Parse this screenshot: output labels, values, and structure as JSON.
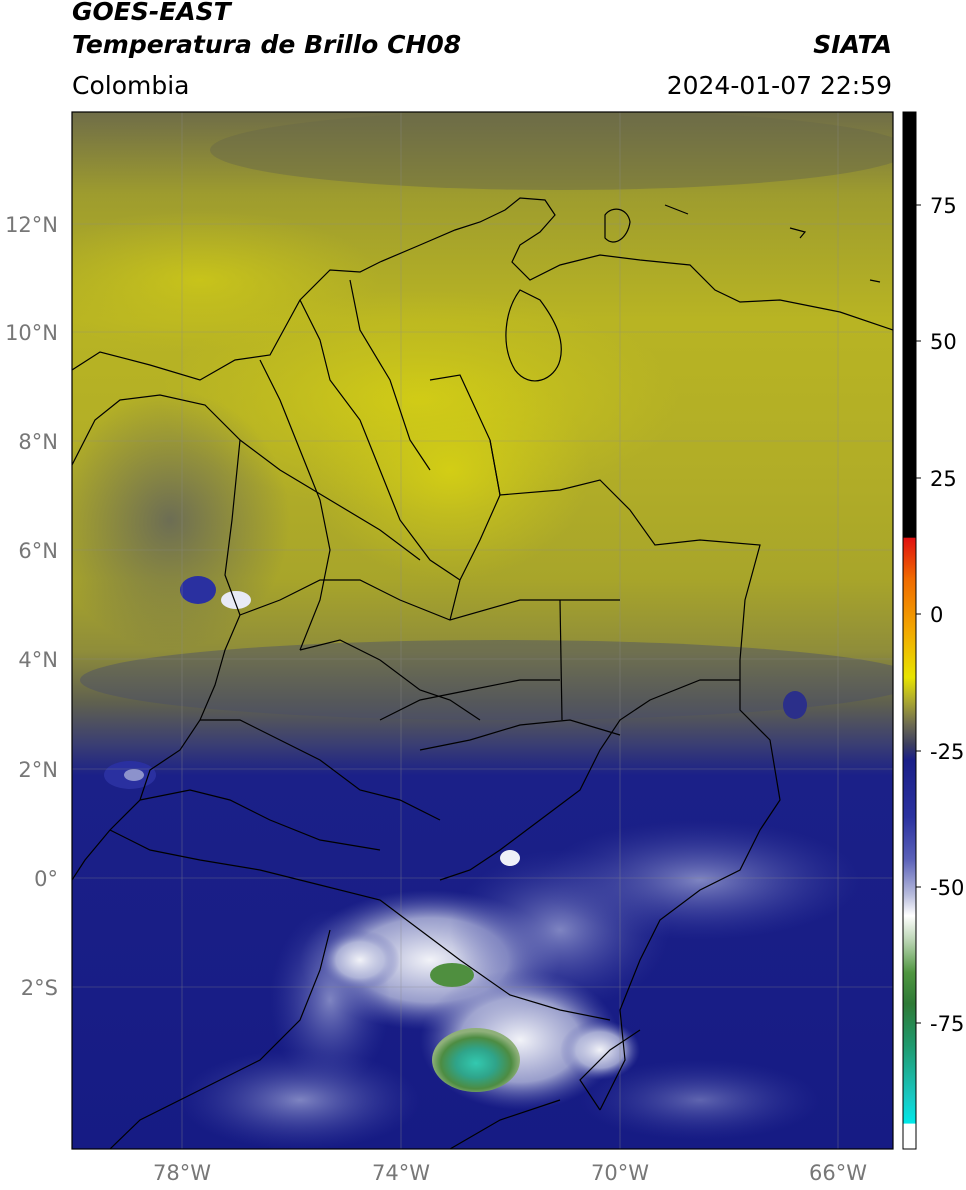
{
  "header": {
    "satellite": "GOES-EAST",
    "product": "Temperatura de Brillo CH08",
    "region": "Colombia",
    "agency": "SIATA",
    "datetime": "2024-01-07 22:59"
  },
  "map": {
    "lat_labels": [
      "12°N",
      "10°N",
      "8°N",
      "6°N",
      "4°N",
      "2°N",
      "0°",
      "2°S"
    ],
    "lon_labels": [
      "78°W",
      "74°W",
      "70°W",
      "66°W"
    ],
    "lon_range": [
      -80,
      -65
    ],
    "lat_range": [
      -5,
      14
    ],
    "colors": {
      "yellow_bright": "#c6c21c",
      "yellow_olive": "#a7a52c",
      "olive_dark": "#6c6b4a",
      "gray_blue": "#4c4f6e",
      "navy": "#1a1f88",
      "navy_deep": "#121680",
      "white_cloud": "#e6e8f0",
      "green": "#3b8a3e",
      "teal": "#2ec2aa"
    }
  },
  "colorbar": {
    "ticks": [
      "75",
      "50",
      "25",
      "0",
      "-25",
      "-50",
      "-75"
    ],
    "tick_values": [
      75,
      50,
      25,
      0,
      -25,
      -50,
      -75
    ],
    "range": [
      -95,
      90
    ]
  }
}
